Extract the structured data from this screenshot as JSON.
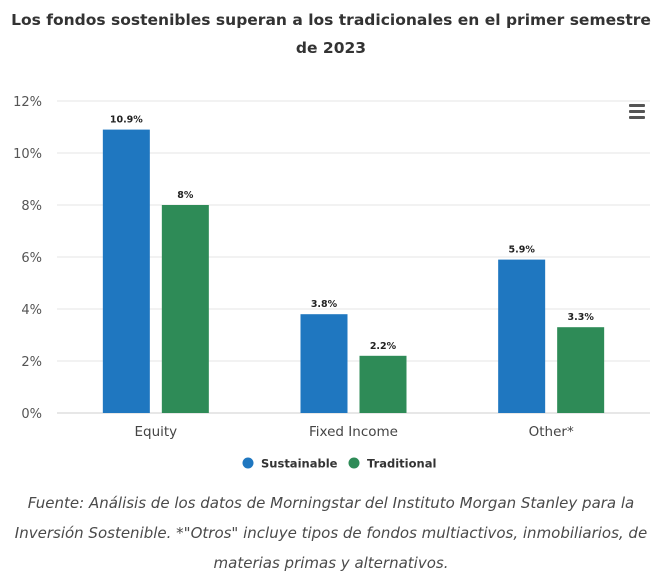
{
  "title": "Los fondos sostenibles superan a los tradicionales en el primer semestre de 2023",
  "menu": {
    "icon": "hamburger-menu-icon"
  },
  "caption": "Fuente: Análisis de los datos de Morningstar del Instituto Morgan Stanley para la Inversión Sostenible. *\"Otros\" incluye tipos de fondos multiactivos, inmobiliarios, de materias primas y alternativos.",
  "chart_data": {
    "type": "bar",
    "title": "Los fondos sostenibles superan a los tradicionales en el primer semestre de 2023",
    "categories": [
      "Equity",
      "Fixed Income",
      "Other*"
    ],
    "series": [
      {
        "name": "Sustainable",
        "color": "#1f77c0",
        "values": [
          10.9,
          3.8,
          5.9
        ],
        "labels": [
          "10.9%",
          "3.8%",
          "5.9%"
        ]
      },
      {
        "name": "Traditional",
        "color": "#2e8b57",
        "values": [
          8,
          2.2,
          3.3
        ],
        "labels": [
          "8%",
          "2.2%",
          "3.3%"
        ]
      }
    ],
    "ylim": [
      0,
      12
    ],
    "yticks": [
      0,
      2,
      4,
      6,
      8,
      10,
      12
    ],
    "ytick_labels": [
      "0%",
      "2%",
      "4%",
      "6%",
      "8%",
      "10%",
      "12%"
    ],
    "xlabel": "",
    "ylabel": "",
    "grid": true,
    "legend": "bottom-center"
  }
}
